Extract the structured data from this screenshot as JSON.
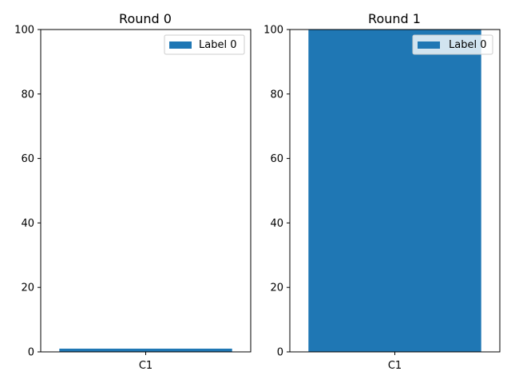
{
  "colors": {
    "bar": "#1f77b4",
    "axis": "#000000",
    "background": "#ffffff"
  },
  "chart_data": [
    {
      "type": "bar",
      "title": "Round 0",
      "categories": [
        "C1"
      ],
      "series": [
        {
          "name": "Label 0",
          "values": [
            1
          ]
        }
      ],
      "ylim": [
        0,
        100
      ],
      "yticks": [
        0,
        20,
        40,
        60,
        80,
        100
      ],
      "legend": "top-right",
      "grid": false
    },
    {
      "type": "bar",
      "title": "Round 1",
      "categories": [
        "C1"
      ],
      "series": [
        {
          "name": "Label 0",
          "values": [
            100
          ]
        }
      ],
      "ylim": [
        0,
        100
      ],
      "yticks": [
        0,
        20,
        40,
        60,
        80,
        100
      ],
      "legend": "top-right",
      "grid": false
    }
  ]
}
